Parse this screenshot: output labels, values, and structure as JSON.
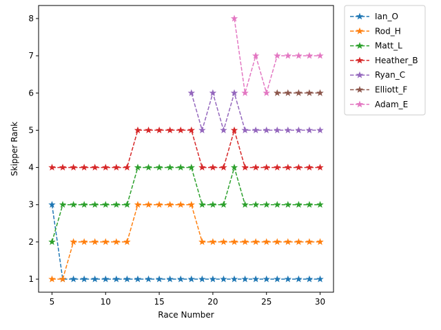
{
  "chart_data": {
    "type": "line",
    "xlabel": "Race Number",
    "ylabel": "Skipper Rank",
    "xlim": [
      3.75,
      31.25
    ],
    "ylim": [
      0.65,
      8.35
    ],
    "xticks": [
      5,
      10,
      15,
      20,
      25,
      30
    ],
    "yticks": [
      1,
      2,
      3,
      4,
      5,
      6,
      7,
      8
    ],
    "grid": false,
    "legend_position": "outside-top-right",
    "line_style": "dashed",
    "marker": "star",
    "series": [
      {
        "name": "Ian_O",
        "color": "#1f77b4",
        "x": [
          5,
          6,
          7,
          8,
          9,
          10,
          11,
          12,
          13,
          14,
          15,
          16,
          17,
          18,
          19,
          20,
          21,
          22,
          23,
          24,
          25,
          26,
          27,
          28,
          29,
          30
        ],
        "y": [
          3,
          1,
          1,
          1,
          1,
          1,
          1,
          1,
          1,
          1,
          1,
          1,
          1,
          1,
          1,
          1,
          1,
          1,
          1,
          1,
          1,
          1,
          1,
          1,
          1,
          1
        ]
      },
      {
        "name": "Rod_H",
        "color": "#ff7f0e",
        "x": [
          5,
          6,
          7,
          8,
          9,
          10,
          11,
          12,
          13,
          14,
          15,
          16,
          17,
          18,
          19,
          20,
          21,
          22,
          23,
          24,
          25,
          26,
          27,
          28,
          29,
          30
        ],
        "y": [
          1,
          1,
          2,
          2,
          2,
          2,
          2,
          2,
          3,
          3,
          3,
          3,
          3,
          3,
          2,
          2,
          2,
          2,
          2,
          2,
          2,
          2,
          2,
          2,
          2,
          2
        ]
      },
      {
        "name": "Matt_L",
        "color": "#2ca02c",
        "x": [
          5,
          6,
          7,
          8,
          9,
          10,
          11,
          12,
          13,
          14,
          15,
          16,
          17,
          18,
          19,
          20,
          21,
          22,
          23,
          24,
          25,
          26,
          27,
          28,
          29,
          30
        ],
        "y": [
          2,
          3,
          3,
          3,
          3,
          3,
          3,
          3,
          4,
          4,
          4,
          4,
          4,
          4,
          3,
          3,
          3,
          4,
          3,
          3,
          3,
          3,
          3,
          3,
          3,
          3
        ]
      },
      {
        "name": "Heather_B",
        "color": "#d62728",
        "x": [
          5,
          6,
          7,
          8,
          9,
          10,
          11,
          12,
          13,
          14,
          15,
          16,
          17,
          18,
          19,
          20,
          21,
          22,
          23,
          24,
          25,
          26,
          27,
          28,
          29,
          30
        ],
        "y": [
          4,
          4,
          4,
          4,
          4,
          4,
          4,
          4,
          5,
          5,
          5,
          5,
          5,
          5,
          4,
          4,
          4,
          5,
          4,
          4,
          4,
          4,
          4,
          4,
          4,
          4
        ]
      },
      {
        "name": "Ryan_C",
        "color": "#9467bd",
        "x": [
          18,
          19,
          20,
          21,
          22,
          23,
          24,
          25,
          26,
          27,
          28,
          29,
          30
        ],
        "y": [
          6,
          5,
          6,
          5,
          6,
          5,
          5,
          5,
          5,
          5,
          5,
          5,
          5
        ]
      },
      {
        "name": "Elliott_F",
        "color": "#8c564b",
        "x": [
          26,
          27,
          28,
          29,
          30
        ],
        "y": [
          6,
          6,
          6,
          6,
          6
        ]
      },
      {
        "name": "Adam_E",
        "color": "#e377c2",
        "x": [
          22,
          23,
          24,
          25,
          26,
          27,
          28,
          29,
          30
        ],
        "y": [
          8,
          6,
          7,
          6,
          7,
          7,
          7,
          7,
          7
        ]
      }
    ]
  }
}
